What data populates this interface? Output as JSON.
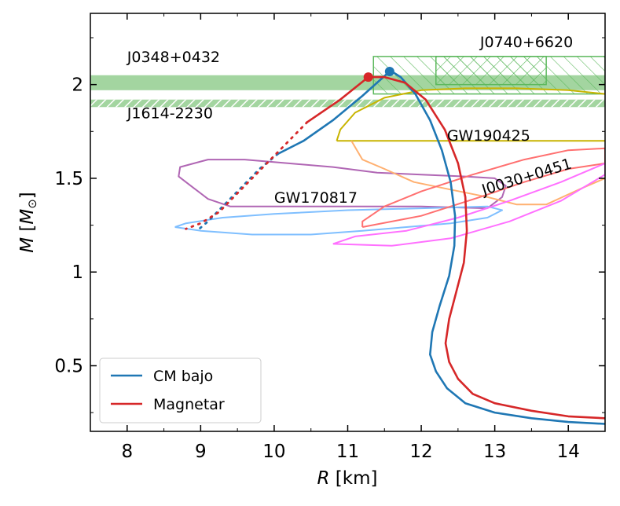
{
  "chart_data": {
    "type": "line",
    "xlabel": "R [km]",
    "ylabel": "M [M⊙]",
    "xlim": [
      7.5,
      14.5
    ],
    "ylim": [
      0.15,
      2.38
    ],
    "x_ticks": [
      8,
      9,
      10,
      11,
      12,
      13,
      14
    ],
    "y_ticks": [
      0.5,
      1,
      1.5,
      2
    ],
    "x_tick_labels": [
      "8",
      "9",
      "10",
      "11",
      "12",
      "13",
      "14"
    ],
    "y_tick_labels": [
      "0.5",
      "1",
      "1.5",
      "2"
    ],
    "grid": false,
    "legend_position": "lower-left",
    "series": [
      {
        "name": "CM bajo",
        "color": "#1f77b4",
        "points": [
          [
            14.5,
            0.19
          ],
          [
            14.0,
            0.2
          ],
          [
            13.5,
            0.22
          ],
          [
            13.0,
            0.25
          ],
          [
            12.6,
            0.3
          ],
          [
            12.35,
            0.38
          ],
          [
            12.2,
            0.47
          ],
          [
            12.12,
            0.56
          ],
          [
            12.15,
            0.68
          ],
          [
            12.25,
            0.82
          ],
          [
            12.38,
            0.98
          ],
          [
            12.45,
            1.14
          ],
          [
            12.46,
            1.3
          ],
          [
            12.4,
            1.48
          ],
          [
            12.28,
            1.65
          ],
          [
            12.12,
            1.81
          ],
          [
            11.92,
            1.95
          ],
          [
            11.72,
            2.04
          ],
          [
            11.6,
            2.07
          ]
        ],
        "endpoint": [
          11.57,
          2.07
        ],
        "unstable": [
          [
            11.57,
            2.07
          ],
          [
            11.2,
            1.94
          ],
          [
            10.8,
            1.81
          ],
          [
            10.4,
            1.7
          ],
          [
            10.05,
            1.63
          ]
        ],
        "dotted": [
          [
            10.05,
            1.63
          ],
          [
            9.8,
            1.55
          ],
          [
            9.55,
            1.45
          ],
          [
            9.3,
            1.35
          ],
          [
            9.1,
            1.27
          ],
          [
            8.95,
            1.22
          ]
        ]
      },
      {
        "name": "Magnetar",
        "color": "#d62728",
        "points": [
          [
            14.5,
            0.22
          ],
          [
            14.0,
            0.23
          ],
          [
            13.5,
            0.26
          ],
          [
            13.0,
            0.3
          ],
          [
            12.7,
            0.35
          ],
          [
            12.5,
            0.43
          ],
          [
            12.38,
            0.52
          ],
          [
            12.33,
            0.62
          ],
          [
            12.38,
            0.75
          ],
          [
            12.48,
            0.9
          ],
          [
            12.58,
            1.05
          ],
          [
            12.62,
            1.22
          ],
          [
            12.6,
            1.4
          ],
          [
            12.5,
            1.58
          ],
          [
            12.32,
            1.76
          ],
          [
            12.06,
            1.92
          ],
          [
            11.78,
            2.01
          ],
          [
            11.5,
            2.04
          ],
          [
            11.3,
            2.04
          ]
        ],
        "endpoint": [
          11.28,
          2.04
        ],
        "unstable": [
          [
            11.28,
            2.04
          ],
          [
            10.9,
            1.92
          ],
          [
            10.45,
            1.8
          ]
        ],
        "dotted": [
          [
            10.45,
            1.8
          ],
          [
            10.1,
            1.66
          ],
          [
            9.75,
            1.52
          ],
          [
            9.5,
            1.42
          ],
          [
            9.25,
            1.32
          ],
          [
            9.0,
            1.26
          ],
          [
            8.8,
            1.23
          ]
        ]
      }
    ],
    "gw_contours": [
      {
        "color": "#b066b4",
        "points": [
          [
            12.9,
            1.34
          ],
          [
            12.0,
            1.35
          ],
          [
            11.0,
            1.35
          ],
          [
            10.0,
            1.35
          ],
          [
            9.4,
            1.35
          ],
          [
            9.1,
            1.39
          ],
          [
            8.9,
            1.45
          ],
          [
            8.7,
            1.51
          ],
          [
            8.72,
            1.56
          ],
          [
            9.1,
            1.6
          ],
          [
            9.6,
            1.6
          ],
          [
            10.2,
            1.58
          ],
          [
            10.8,
            1.56
          ],
          [
            11.4,
            1.53
          ],
          [
            12.0,
            1.52
          ],
          [
            12.6,
            1.51
          ],
          [
            13.0,
            1.5
          ],
          [
            13.15,
            1.46
          ],
          [
            13.1,
            1.4
          ],
          [
            12.9,
            1.34
          ]
        ]
      },
      {
        "color": "#7fbfff",
        "points": [
          [
            8.65,
            1.24
          ],
          [
            9.0,
            1.22
          ],
          [
            9.7,
            1.2
          ],
          [
            10.5,
            1.2
          ],
          [
            11.2,
            1.22
          ],
          [
            11.8,
            1.24
          ],
          [
            12.4,
            1.26
          ],
          [
            12.9,
            1.29
          ],
          [
            13.1,
            1.33
          ],
          [
            12.9,
            1.35
          ],
          [
            12.0,
            1.34
          ],
          [
            11.0,
            1.33
          ],
          [
            10.0,
            1.31
          ],
          [
            9.3,
            1.29
          ],
          [
            8.8,
            1.26
          ],
          [
            8.65,
            1.24
          ]
        ]
      },
      {
        "color": "#c8b400",
        "points": [
          [
            10.85,
            1.7
          ],
          [
            11.6,
            1.7
          ],
          [
            12.5,
            1.7
          ],
          [
            13.5,
            1.7
          ],
          [
            14.5,
            1.7
          ]
        ]
      },
      {
        "color": "#c8b400",
        "points": [
          [
            10.85,
            1.7
          ],
          [
            10.9,
            1.76
          ],
          [
            11.1,
            1.85
          ],
          [
            11.5,
            1.93
          ],
          [
            12.0,
            1.97
          ],
          [
            12.6,
            1.98
          ],
          [
            13.3,
            1.98
          ],
          [
            14.0,
            1.97
          ],
          [
            14.5,
            1.95
          ]
        ]
      },
      {
        "color": "#ffb070",
        "points": [
          [
            11.05,
            1.7
          ],
          [
            11.2,
            1.6
          ],
          [
            11.5,
            1.55
          ],
          [
            11.9,
            1.48
          ],
          [
            12.4,
            1.44
          ],
          [
            12.9,
            1.4
          ],
          [
            13.3,
            1.36
          ],
          [
            13.7,
            1.36
          ],
          [
            14.2,
            1.45
          ],
          [
            14.5,
            1.5
          ]
        ]
      },
      {
        "color": "#ff7070",
        "points": [
          [
            11.2,
            1.24
          ],
          [
            12.0,
            1.3
          ],
          [
            12.8,
            1.4
          ],
          [
            13.4,
            1.48
          ],
          [
            14.0,
            1.55
          ],
          [
            14.5,
            1.58
          ],
          [
            14.5,
            1.66
          ],
          [
            14.0,
            1.65
          ],
          [
            13.4,
            1.6
          ],
          [
            12.7,
            1.52
          ],
          [
            12.0,
            1.43
          ],
          [
            11.5,
            1.35
          ],
          [
            11.2,
            1.27
          ],
          [
            11.2,
            1.24
          ]
        ]
      },
      {
        "color": "#ff70ff",
        "points": [
          [
            10.8,
            1.15
          ],
          [
            11.6,
            1.14
          ],
          [
            12.4,
            1.18
          ],
          [
            13.2,
            1.27
          ],
          [
            13.9,
            1.38
          ],
          [
            14.5,
            1.52
          ],
          [
            14.5,
            1.58
          ],
          [
            13.9,
            1.48
          ],
          [
            13.2,
            1.38
          ],
          [
            12.5,
            1.29
          ],
          [
            11.8,
            1.22
          ],
          [
            11.1,
            1.19
          ],
          [
            10.8,
            1.15
          ]
        ]
      }
    ],
    "bands": [
      {
        "label": "J0348+0432",
        "m_low": 1.97,
        "m_high": 2.05,
        "style": "solid",
        "color": "#a3d5a0"
      },
      {
        "label": "J1614-2230",
        "m_low": 1.88,
        "m_high": 1.92,
        "style": "hatched",
        "color": "#a3d5a0"
      },
      {
        "label": "J0740+6620",
        "style": "hatched-box",
        "color": "#5cb85c",
        "boxes": [
          {
            "r": [
              11.35,
              14.5
            ],
            "m": [
              1.95,
              2.15
            ]
          },
          {
            "r": [
              12.2,
              13.7
            ],
            "m": [
              2.0,
              2.15
            ]
          }
        ]
      }
    ],
    "annotations": [
      {
        "text": "J0348+0432",
        "x": 8.0,
        "y": 2.12
      },
      {
        "text": "J1614-2230",
        "x": 8.0,
        "y": 1.82
      },
      {
        "text": "J0740+6620",
        "x": 12.8,
        "y": 2.2
      },
      {
        "text": "GW190425",
        "x": 12.35,
        "y": 1.7
      },
      {
        "text": "GW170817",
        "x": 10.0,
        "y": 1.37
      },
      {
        "text": "J0030+0451",
        "x": 12.85,
        "y": 1.41,
        "rotate": -17
      }
    ],
    "legend": [
      {
        "label": "CM bajo",
        "color": "#1f77b4"
      },
      {
        "label": "Magnetar",
        "color": "#d62728"
      }
    ]
  }
}
